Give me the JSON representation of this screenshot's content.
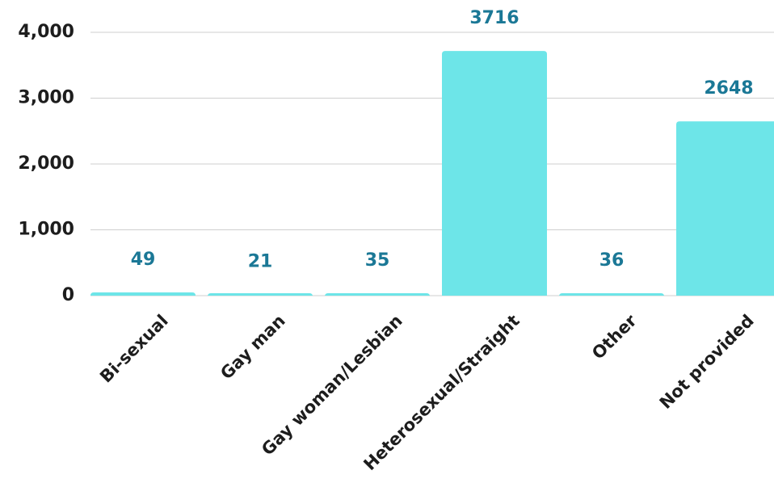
{
  "chart_data": {
    "type": "bar",
    "categories": [
      "Bi-sexual",
      "Gay man",
      "Gay woman/Lesbian",
      "Heterosexual/Straight",
      "Other",
      "Not provided"
    ],
    "values": [
      49,
      21,
      35,
      3716,
      36,
      2648
    ],
    "color": "#6de5e8",
    "ylim": [
      0,
      4000
    ],
    "yticks": [
      0,
      {
        "value": 1000,
        "label": "1,000"
      },
      {
        "value": 2000,
        "label": "2,000"
      },
      {
        "value": 3000,
        "label": "3,000"
      },
      {
        "value": 4000,
        "label": "4,000"
      }
    ],
    "grid": true
  }
}
